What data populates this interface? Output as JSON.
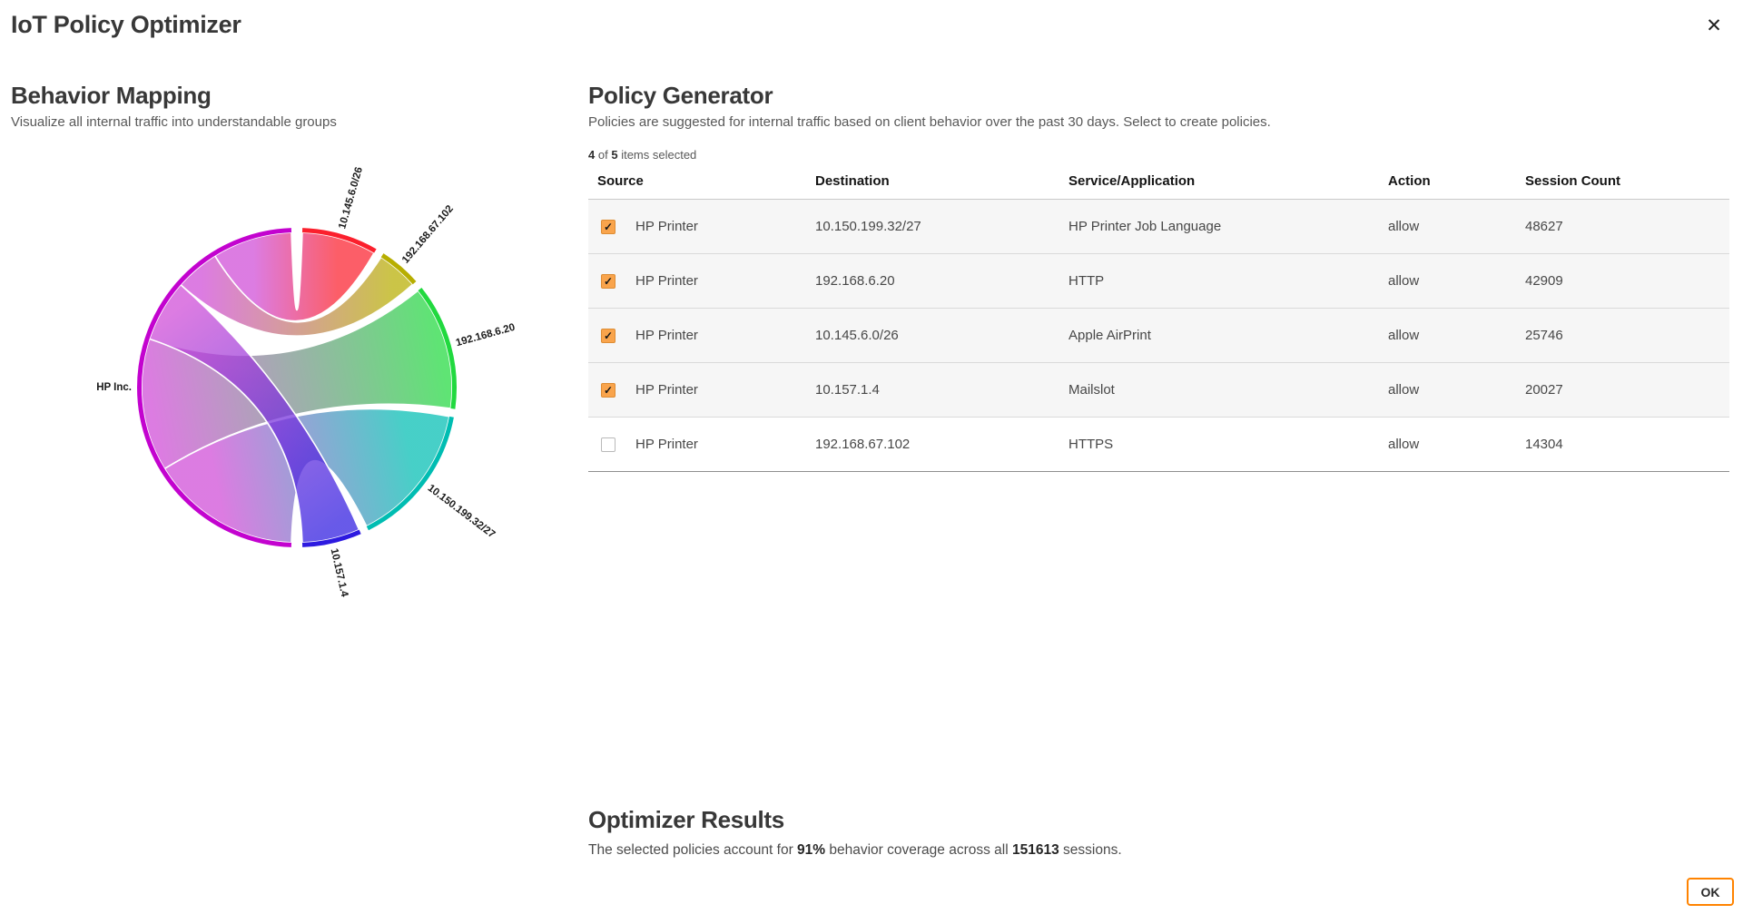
{
  "dialog": {
    "title": "IoT Policy Optimizer",
    "close_label": "✕",
    "ok_label": "OK",
    "accent_orange": "#ff8300",
    "checkbox_checked_color": "#f9a44c",
    "check_glyph": "✓"
  },
  "behavior_mapping": {
    "heading": "Behavior Mapping",
    "subtitle": "Visualize all internal traffic into understandable groups"
  },
  "policy_generator": {
    "heading": "Policy Generator",
    "subtitle": "Policies are suggested for internal traffic based on client behavior over the past 30 days. Select to create policies.",
    "selected_count": "4",
    "of_label": "of",
    "total_count": "5",
    "items_selected_label": "items selected",
    "table": {
      "columns": [
        "Source",
        "Destination",
        "Service/Application",
        "Action",
        "Session Count"
      ],
      "rows": [
        {
          "selected": true,
          "source": "HP Printer",
          "destination": "10.150.199.32/27",
          "service": "HP Printer Job Language",
          "action": "allow",
          "sessions": "48627"
        },
        {
          "selected": true,
          "source": "HP Printer",
          "destination": "192.168.6.20",
          "service": "HTTP",
          "action": "allow",
          "sessions": "42909"
        },
        {
          "selected": true,
          "source": "HP Printer",
          "destination": "10.145.6.0/26",
          "service": "Apple AirPrint",
          "action": "allow",
          "sessions": "25746"
        },
        {
          "selected": true,
          "source": "HP Printer",
          "destination": "10.157.1.4",
          "service": "Mailslot",
          "action": "allow",
          "sessions": "20027"
        },
        {
          "selected": false,
          "source": "HP Printer",
          "destination": "192.168.67.102",
          "service": "HTTPS",
          "action": "allow",
          "sessions": "14304"
        }
      ]
    }
  },
  "optimizer_results": {
    "heading": "Optimizer Results",
    "text_prefix": "The selected policies account for ",
    "coverage": "91%",
    "text_middle": " behavior coverage across all ",
    "sessions_total": "151613",
    "text_suffix": " sessions."
  },
  "chart_data": {
    "type": "chord",
    "title": "Behavior Mapping chord diagram",
    "source": {
      "label": "HP Inc.",
      "color": "#c303cf",
      "ribbon_color": "#cf49d6"
    },
    "targets": [
      {
        "label": "10.145.6.0/26",
        "color": "#fb202d",
        "sessions": 25746
      },
      {
        "label": "192.168.67.102",
        "color": "#b7ae00",
        "sessions": 14304
      },
      {
        "label": "192.168.6.20",
        "color": "#21d93f",
        "sessions": 42909
      },
      {
        "label": "10.150.199.32/27",
        "color": "#00bdb2",
        "sessions": 48627
      },
      {
        "label": "10.157.1.4",
        "color": "#2d1ae0",
        "sessions": 20027
      }
    ],
    "total_sessions": 151613,
    "layout": {
      "target_start_deg": 2,
      "target_end_deg": 178,
      "gap_deg": 3,
      "source_start_deg": 182,
      "source_end_deg": 358,
      "source_order": [
        "10.150.199.32/27",
        "192.168.6.20",
        "10.157.1.4",
        "192.168.67.102",
        "10.145.6.0/26"
      ],
      "draw_order": [
        "192.168.6.20",
        "10.150.199.32/27",
        "10.145.6.0/26",
        "192.168.67.102",
        "10.157.1.4"
      ]
    }
  }
}
